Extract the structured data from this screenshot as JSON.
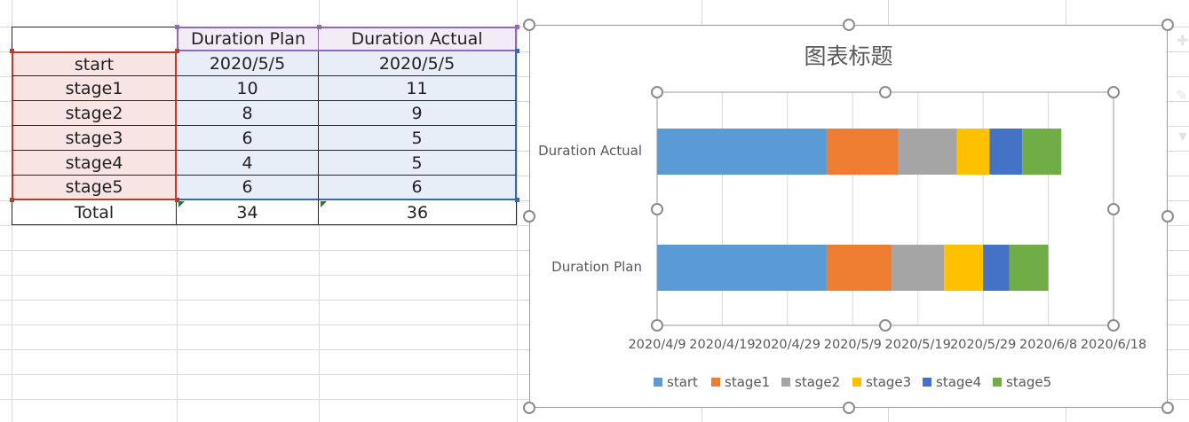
{
  "table": {
    "headers": [
      "Duration Plan",
      "Duration Actual"
    ],
    "rows": [
      {
        "label": "start",
        "plan": "2020/5/5",
        "actual": "2020/5/5"
      },
      {
        "label": "stage1",
        "plan": "10",
        "actual": "11"
      },
      {
        "label": "stage2",
        "plan": "8",
        "actual": "9"
      },
      {
        "label": "stage3",
        "plan": "6",
        "actual": "5"
      },
      {
        "label": "stage4",
        "plan": "4",
        "actual": "5"
      },
      {
        "label": "stage5",
        "plan": "6",
        "actual": "6"
      }
    ],
    "total": {
      "label": "Total",
      "plan": "34",
      "actual": "36"
    }
  },
  "chart_data": {
    "type": "bar",
    "orientation": "horizontal",
    "stacked": true,
    "title": "图表标题",
    "categories": [
      "Duration Actual",
      "Duration Plan"
    ],
    "series": [
      {
        "name": "start",
        "color": "#5b9bd5",
        "values": [
          43956,
          43956
        ]
      },
      {
        "name": "stage1",
        "color": "#ed7d31",
        "values": [
          11,
          10
        ]
      },
      {
        "name": "stage2",
        "color": "#a5a5a5",
        "values": [
          9,
          8
        ]
      },
      {
        "name": "stage3",
        "color": "#ffc000",
        "values": [
          5,
          6
        ]
      },
      {
        "name": "stage4",
        "color": "#4472c4",
        "values": [
          5,
          4
        ]
      },
      {
        "name": "stage5",
        "color": "#70ad47",
        "values": [
          6,
          6
        ]
      }
    ],
    "xlim": [
      "2020/4/9",
      "2020/6/18"
    ],
    "x_ticks": [
      "2020/4/9",
      "2020/4/19",
      "2020/4/29",
      "2020/5/9",
      "2020/5/19",
      "2020/5/29",
      "2020/6/8",
      "2020/6/18"
    ],
    "grid": true,
    "legend_position": "bottom"
  }
}
